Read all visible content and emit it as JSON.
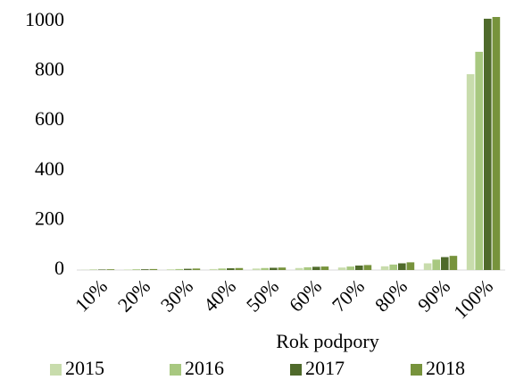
{
  "chart_data": {
    "type": "bar",
    "x_label": "Rok podpory",
    "categories": [
      "10%",
      "20%",
      "30%",
      "40%",
      "50%",
      "60%",
      "70%",
      "80%",
      "90%",
      "100%"
    ],
    "series": [
      {
        "name": "2015",
        "color": "#c8dcac",
        "values": [
          1,
          2,
          3,
          4,
          6,
          8,
          10,
          15,
          27,
          788
        ]
      },
      {
        "name": "2016",
        "color": "#a8c880",
        "values": [
          2,
          3,
          4,
          6,
          8,
          11,
          14,
          22,
          42,
          878
        ]
      },
      {
        "name": "2017",
        "color": "#4f6a2b",
        "values": [
          2,
          3,
          5,
          7,
          9,
          13,
          18,
          27,
          52,
          1011
        ]
      },
      {
        "name": "2018",
        "color": "#77933c",
        "values": [
          3,
          4,
          6,
          8,
          10,
          14,
          20,
          31,
          57,
          1018
        ]
      }
    ],
    "ylim": [
      0,
      1000
    ],
    "yticks": [
      0,
      200,
      400,
      600,
      800,
      1000
    ],
    "grid": false,
    "legend": "bottom"
  }
}
